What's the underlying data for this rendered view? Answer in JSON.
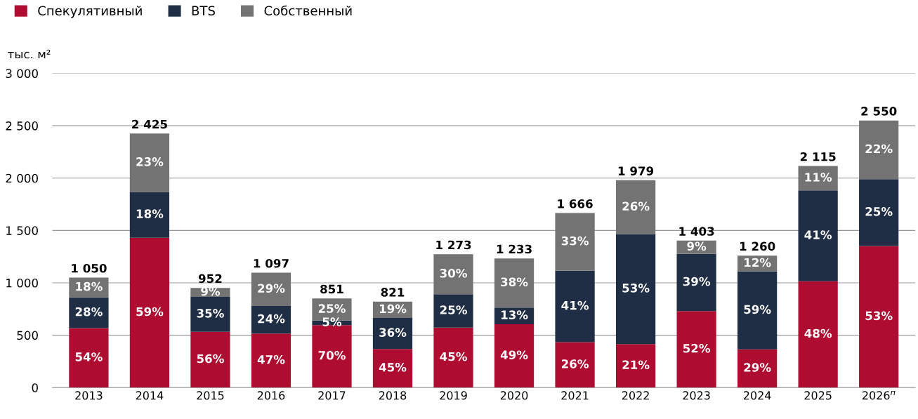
{
  "chart_data": {
    "type": "bar",
    "stacked": true,
    "ylabel": "тыс. м²",
    "categories": [
      "2013",
      "2014",
      "2015",
      "2016",
      "2017",
      "2018",
      "2019",
      "2020",
      "2021",
      "2022",
      "2023",
      "2024",
      "2025",
      "2026$^{п}$"
    ],
    "series": [
      {
        "name": "Спекулятивный",
        "color": "#ae0c31",
        "values": [
          567,
          1431,
          533,
          516,
          596,
          369,
          573,
          604,
          433,
          416,
          730,
          365,
          1015,
          1352
        ]
      },
      {
        "name": "BTS",
        "color": "#1f2e45",
        "values": [
          294,
          437,
          333,
          263,
          43,
          296,
          318,
          160,
          683,
          1049,
          547,
          743,
          867,
          638
        ]
      },
      {
        "name": "Собственный",
        "color": "#737373",
        "values": [
          189,
          557,
          86,
          318,
          212,
          156,
          382,
          469,
          550,
          514,
          126,
          152,
          233,
          560
        ]
      }
    ],
    "annotations": [
      "54%",
      "59%",
      "56%",
      "47%",
      "70%",
      "45%",
      "45%",
      "49%",
      "26%",
      "21%",
      "52%",
      "29%",
      "48%",
      "53%",
      "28%",
      "18%",
      "35%",
      "24%",
      "5%",
      "36%",
      "25%",
      "13%",
      "41%",
      "53%",
      "39%",
      "59%",
      "41%",
      "25%",
      "18%",
      "23%",
      "9%",
      "29%",
      "25%",
      "19%",
      "30%",
      "38%",
      "33%",
      "26%",
      "9%",
      "12%",
      "11%",
      "22%"
    ],
    "totals": [
      "1 050",
      "2 425",
      "952",
      "1 097",
      "851",
      "821",
      "1 273",
      "1 233",
      "1 666",
      "1 979",
      "1 403",
      "1 260",
      "2 115",
      "2 550"
    ],
    "ylim": [
      0,
      3000
    ],
    "yticks": [
      0,
      {
        "value": 500,
        "label": "500"
      },
      {
        "value": 1000,
        "label": "1 000"
      },
      {
        "value": 1500,
        "label": "1 500"
      },
      {
        "value": 2000,
        "label": "2 000"
      },
      {
        "value": 2500,
        "label": "2 500"
      },
      {
        "value": 3000,
        "label": "3 000"
      }
    ],
    "grid": "y",
    "legend": "top left"
  }
}
